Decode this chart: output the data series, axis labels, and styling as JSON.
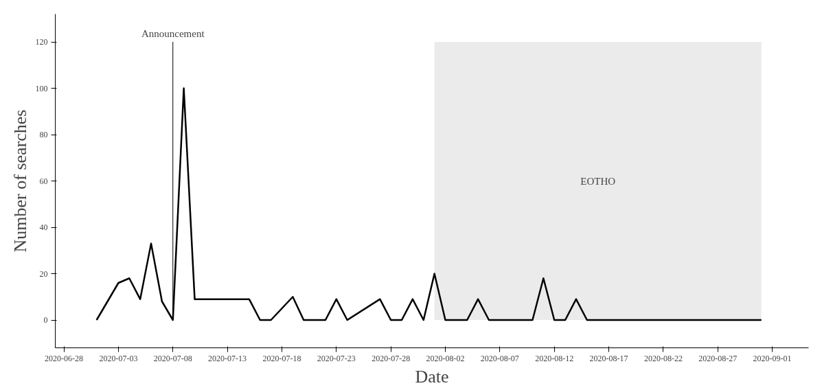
{
  "chart_data": {
    "type": "line",
    "xlabel": "Date",
    "ylabel": "Number of searches",
    "x": [
      "2020-07-01",
      "2020-07-03",
      "2020-07-04",
      "2020-07-05",
      "2020-07-06",
      "2020-07-07",
      "2020-07-08",
      "2020-07-09",
      "2020-07-10",
      "2020-07-15",
      "2020-07-16",
      "2020-07-17",
      "2020-07-19",
      "2020-07-20",
      "2020-07-22",
      "2020-07-23",
      "2020-07-24",
      "2020-07-27",
      "2020-07-28",
      "2020-07-29",
      "2020-07-30",
      "2020-07-31",
      "2020-08-01",
      "2020-08-02",
      "2020-08-04",
      "2020-08-05",
      "2020-08-06",
      "2020-08-10",
      "2020-08-11",
      "2020-08-12",
      "2020-08-13",
      "2020-08-14",
      "2020-08-15",
      "2020-08-31"
    ],
    "series": [
      {
        "color": "#000000",
        "values": [
          0,
          16,
          18,
          9,
          33,
          8,
          0,
          100,
          9,
          9,
          0,
          0,
          10,
          0,
          0,
          9,
          0,
          9,
          0,
          0,
          9,
          0,
          20,
          0,
          0,
          9,
          0,
          0,
          18,
          0,
          0,
          9,
          0,
          0
        ]
      }
    ],
    "xlim": [
      "2020-06-27T05:00",
      "2020-09-04T08:00"
    ],
    "xticks": [
      "2020-06-28",
      "2020-07-03",
      "2020-07-08",
      "2020-07-13",
      "2020-07-18",
      "2020-07-23",
      "2020-07-28",
      "2020-08-02",
      "2020-08-07",
      "2020-08-12",
      "2020-08-17",
      "2020-08-22",
      "2020-08-27",
      "2020-09-01"
    ],
    "ylim": [
      -12,
      132
    ],
    "yticks": [
      0,
      20,
      40,
      60,
      80,
      100,
      120
    ],
    "ref_lines": [
      {
        "axis": "x",
        "value": "2020-07-08",
        "label": "Announcement",
        "color": "#000000"
      }
    ],
    "bands": [
      {
        "axis": "x",
        "from": "2020-08-01",
        "to": "2020-08-31",
        "label": "EOTHO",
        "color": "#ebebeb"
      }
    ],
    "grid": false,
    "marker": "none",
    "line_style": "solid"
  }
}
